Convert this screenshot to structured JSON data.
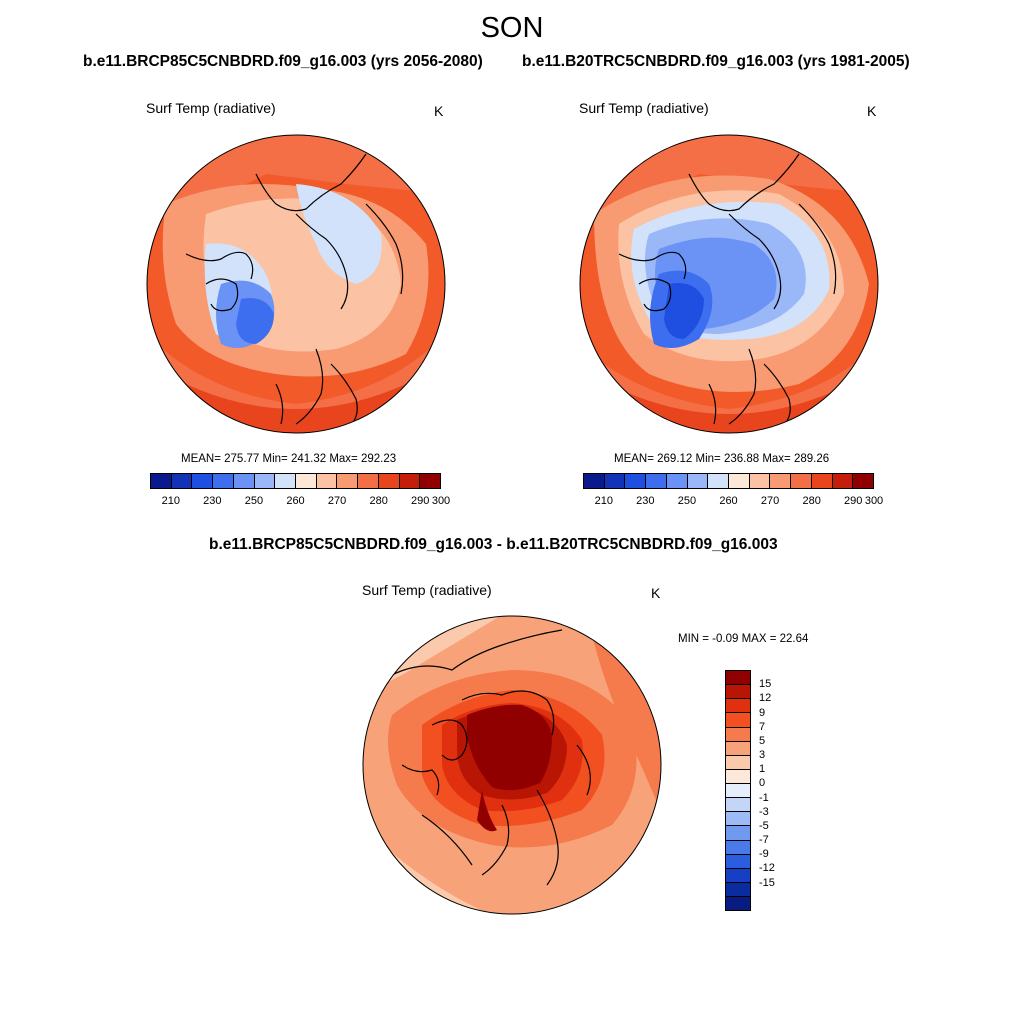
{
  "season": "SON",
  "panels": [
    {
      "case": "b.e11.BRCP85C5CNBDRD.f09_g16.003 (yrs 2056-2080)",
      "title": "Surf Temp (radiative)",
      "unit": "K",
      "stats": "MEAN= 275.77  Min= 241.32  Max= 292.23"
    },
    {
      "case": "b.e11.B20TRC5CNBDRD.f09_g16.003 (yrs 1981-2005)",
      "title": "Surf Temp (radiative)",
      "unit": "K",
      "stats": "MEAN= 269.12  Min= 236.88  Max= 289.26"
    }
  ],
  "diff": {
    "case": "b.e11.BRCP85C5CNBDRD.f09_g16.003 - b.e11.B20TRC5CNBDRD.f09_g16.003",
    "title": "Surf Temp (radiative)",
    "unit": "K",
    "stats": "MIN =  -0.09 MAX =  22.64"
  },
  "colorbar_abs": {
    "colors": [
      "#0a1a8c",
      "#1233b8",
      "#1f4fe0",
      "#3d6ef0",
      "#6a93f5",
      "#9ab7f8",
      "#d2e2fb",
      "#fde8d8",
      "#fbc3a4",
      "#f89a72",
      "#f46f45",
      "#e8451e",
      "#c41e0a",
      "#900000"
    ],
    "labels": [
      "210",
      "230",
      "250",
      "260",
      "270",
      "280",
      "290",
      "300"
    ]
  },
  "colorbar_diff": {
    "colors": [
      "#900000",
      "#b81505",
      "#e03010",
      "#f25020",
      "#f57a4c",
      "#f8a27a",
      "#fbc9ab",
      "#fde7d8",
      "#e6eefb",
      "#c3d6f8",
      "#9cbaf5",
      "#7099f0",
      "#4a7aea",
      "#2a5de0",
      "#173fc4",
      "#0b2ba0",
      "#081b80"
    ],
    "labels": [
      "15",
      "12",
      "9",
      "7",
      "5",
      "3",
      "1",
      "0",
      "-1",
      "-3",
      "-5",
      "-7",
      "-9",
      "-12",
      "-15"
    ]
  }
}
